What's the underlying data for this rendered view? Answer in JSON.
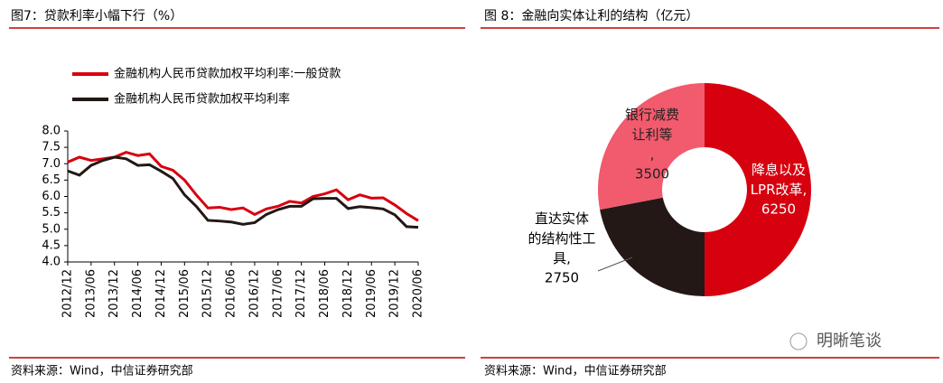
{
  "chart_data": [
    {
      "type": "line",
      "title": "图7：贷款利率小幅下行（%）",
      "categories": [
        "2012/12",
        null,
        "2013/06",
        null,
        "2013/12",
        null,
        "2014/06",
        null,
        "2014/12",
        null,
        "2015/06",
        null,
        "2015/12",
        null,
        "2016/06",
        null,
        "2016/12",
        null,
        "2017/06",
        null,
        "2017/12",
        null,
        "2018/06",
        null,
        "2018/12",
        null,
        "2019/06",
        null,
        "2019/12",
        null,
        "2020/06"
      ],
      "series": [
        {
          "name": "金融机构人民币贷款加权平均利率:一般贷款",
          "color": "#d7000f",
          "values": [
            7.05,
            7.2,
            7.1,
            7.15,
            7.2,
            7.35,
            7.25,
            7.3,
            6.92,
            6.8,
            6.5,
            6.05,
            5.65,
            5.67,
            5.6,
            5.65,
            5.45,
            5.62,
            5.7,
            5.85,
            5.8,
            6.0,
            6.08,
            6.2,
            5.9,
            6.05,
            5.95,
            5.96,
            5.74,
            5.48,
            5.26
          ]
        },
        {
          "name": "金融机构人民币贷款加权平均利率",
          "color": "#231815",
          "values": [
            6.78,
            6.65,
            6.95,
            7.1,
            7.2,
            7.15,
            6.95,
            6.97,
            6.77,
            6.55,
            6.05,
            5.7,
            5.27,
            5.25,
            5.22,
            5.15,
            5.2,
            5.45,
            5.6,
            5.7,
            5.7,
            5.93,
            5.94,
            5.94,
            5.63,
            5.69,
            5.66,
            5.62,
            5.44,
            5.08,
            5.06
          ]
        }
      ],
      "ylim": [
        4,
        8
      ],
      "yticks": [
        {
          "value": 4,
          "label": "4.0"
        },
        {
          "value": 4.5,
          "label": "4.5"
        },
        {
          "value": 5,
          "label": "5.0"
        },
        {
          "value": 5.5,
          "label": "5.5"
        },
        {
          "value": 6,
          "label": "6.0"
        },
        {
          "value": 6.5,
          "label": "6.5"
        },
        {
          "value": 7,
          "label": "7.0"
        },
        {
          "value": 7.5,
          "label": "7.5"
        },
        {
          "value": 8,
          "label": "8.0"
        }
      ],
      "legend": "top-left",
      "grid": false,
      "source": "资料来源：Wind，中信证券研究部"
    },
    {
      "type": "pie",
      "title": "图 8：金融向实体让利的结构（亿元）",
      "categories": [
        "降息以及LPR改革,",
        "直达实体的结构性工具,",
        "银行减费让利等,"
      ],
      "values": [
        6250,
        2750,
        3500
      ],
      "colors": [
        "#d7000f",
        "#231815",
        "#f15b6d"
      ],
      "donut": true,
      "source": "资料来源：Wind，中信证券研究部"
    }
  ],
  "watermark": "明晰笔谈"
}
